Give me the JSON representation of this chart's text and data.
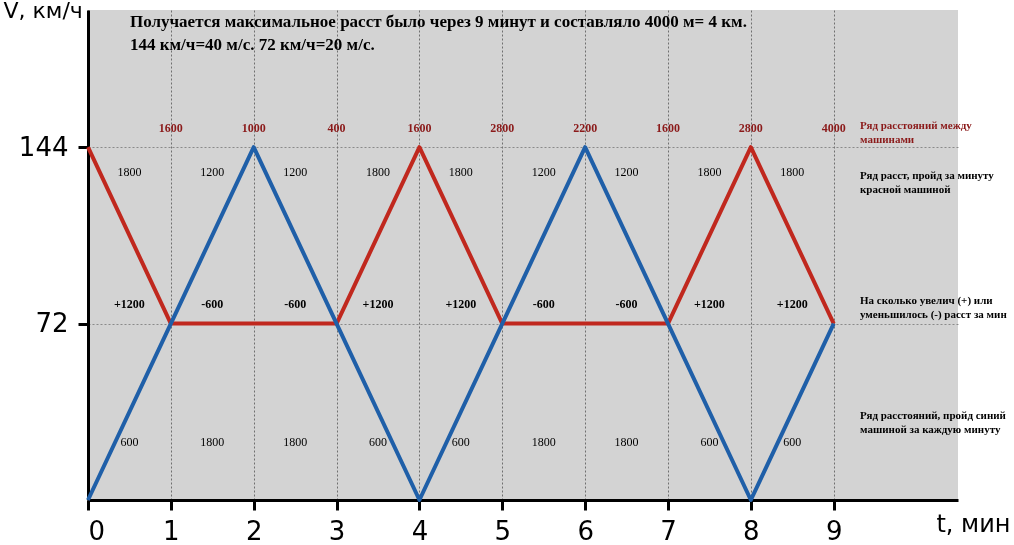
{
  "chart_data": {
    "type": "line",
    "title": "Получается максимальное расст было через 9 минут и составляло 4000 м= 4 км.",
    "subtitle": "144 км/ч=40 м/с.    72 км/ч=20 м/с.",
    "xlabel": "t, мин",
    "ylabel": "V, км/ч",
    "x": [
      0,
      1,
      2,
      3,
      4,
      5,
      6,
      7,
      8,
      9
    ],
    "series": [
      {
        "color": "#c0281e",
        "values": [
          144,
          72,
          72,
          72,
          144,
          72,
          72,
          72,
          144,
          72
        ]
      },
      {
        "color": "#1f5fa8",
        "values": [
          0,
          72,
          144,
          72,
          0,
          72,
          144,
          72,
          0,
          72
        ]
      }
    ],
    "xlim": [
      0,
      10.5
    ],
    "xticks": [
      0,
      1,
      2,
      3,
      4,
      5,
      6,
      7,
      8,
      9
    ],
    "ylim": [
      0,
      200
    ],
    "yticks": [
      72,
      144
    ],
    "grid": true,
    "legend": false,
    "line_style": "solid",
    "annotations": [
      "Ряд расстояний между машинами",
      "1600",
      "1000",
      "400",
      "1600",
      "2800",
      "2200",
      "1600",
      "2800",
      "4000",
      "Ряд расст, пройд за минуту красной машиной",
      "1800",
      "1200",
      "1200",
      "1800",
      "1800",
      "1200",
      "1200",
      "1800",
      "1800",
      "На сколько увелич (+) или уменьшилось (-) расст за мин",
      "+1200",
      "-600",
      "-600",
      "+1200",
      "+1200",
      "-600",
      "-600",
      "+1200",
      "+1200",
      "Ряд расстояний, пройд синий машиной за каждую минуту",
      "600",
      "1800",
      "1800",
      "600",
      "600",
      "1800",
      "1800",
      "600",
      "600"
    ]
  }
}
